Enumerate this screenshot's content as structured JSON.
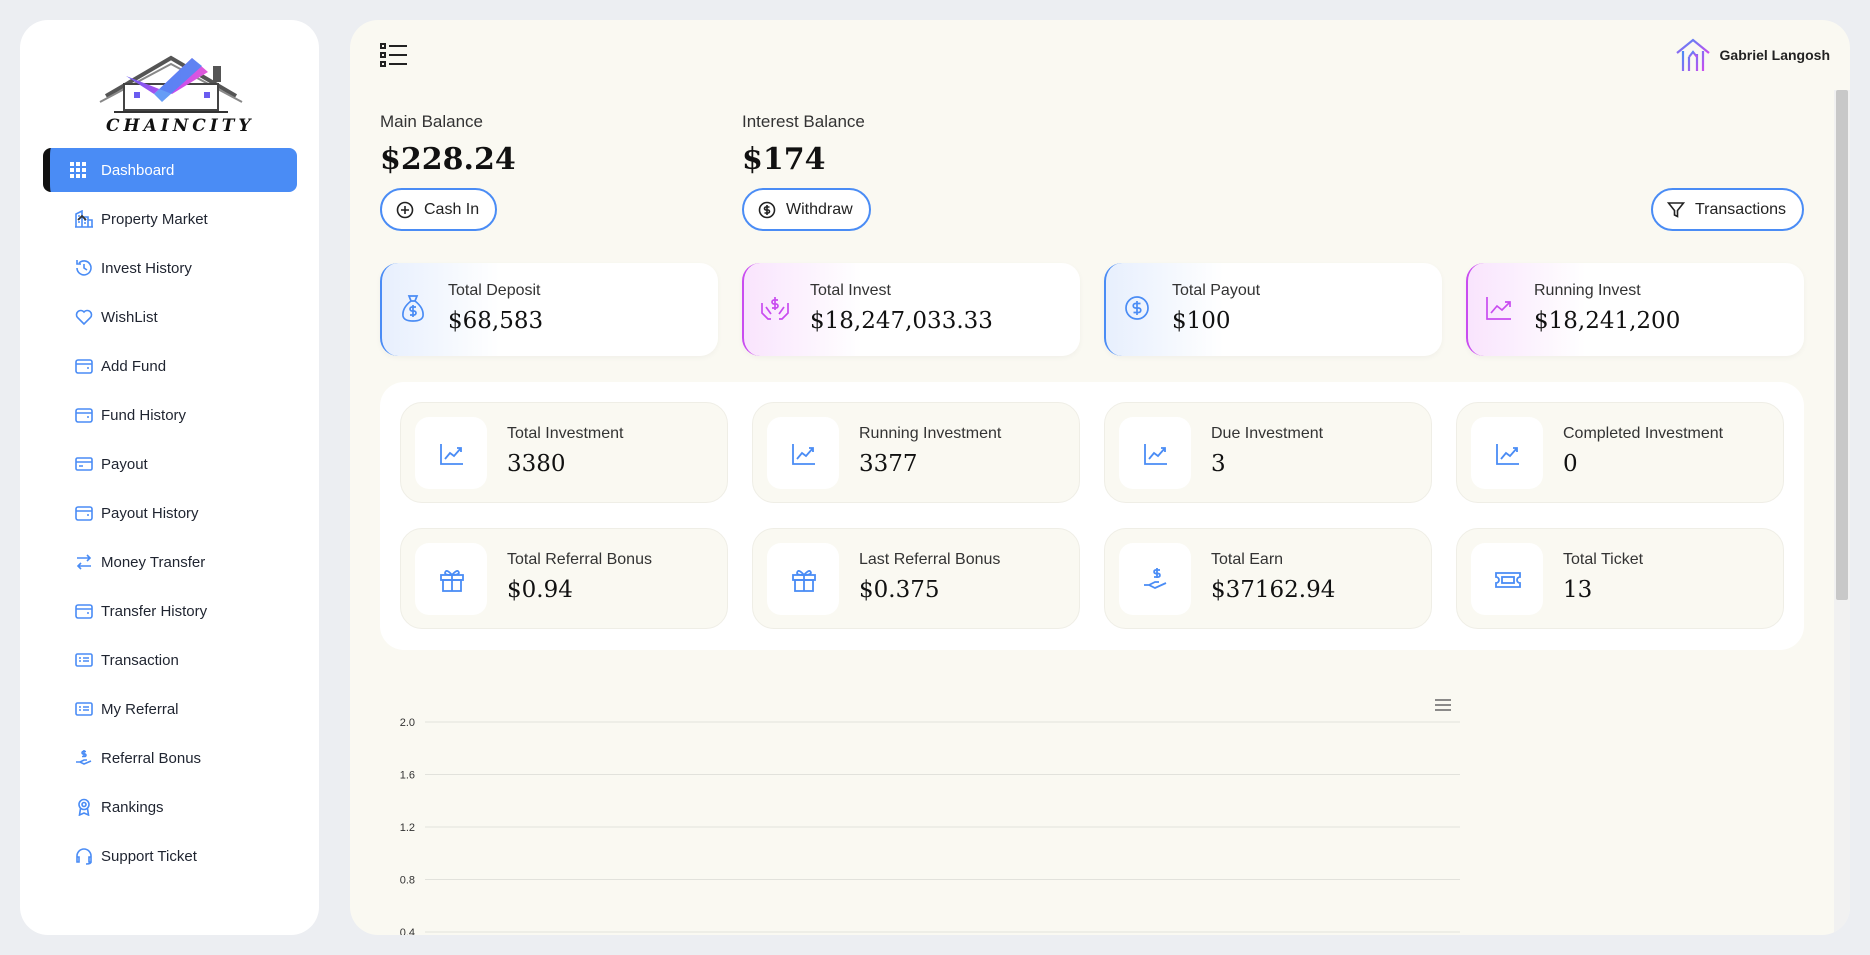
{
  "brand": {
    "name": "CHAINCITY"
  },
  "sidebar": {
    "items": [
      {
        "label": "Dashboard",
        "icon": "grid-icon",
        "active": true
      },
      {
        "label": "Property Market",
        "icon": "property-icon",
        "expandable": true
      },
      {
        "label": "Invest History",
        "icon": "history-icon"
      },
      {
        "label": "WishList",
        "icon": "heart-icon"
      },
      {
        "label": "Add Fund",
        "icon": "wallet-icon"
      },
      {
        "label": "Fund History",
        "icon": "wallet-icon"
      },
      {
        "label": "Payout",
        "icon": "card-icon"
      },
      {
        "label": "Payout History",
        "icon": "wallet-icon"
      },
      {
        "label": "Money Transfer",
        "icon": "transfer-icon"
      },
      {
        "label": "Transfer History",
        "icon": "wallet-icon"
      },
      {
        "label": "Transaction",
        "icon": "receipt-icon"
      },
      {
        "label": "My Referral",
        "icon": "receipt-icon"
      },
      {
        "label": "Referral Bonus",
        "icon": "hand-dollar-icon"
      },
      {
        "label": "Rankings",
        "icon": "award-icon"
      },
      {
        "label": "Support Ticket",
        "icon": "headset-icon"
      }
    ]
  },
  "header": {
    "user_name": "Gabriel Langosh"
  },
  "balances": {
    "main": {
      "title": "Main Balance",
      "value": "$228.24",
      "action": "Cash In"
    },
    "interest": {
      "title": "Interest Balance",
      "value": "$174",
      "action": "Withdraw"
    },
    "transactions_label": "Transactions"
  },
  "summary": [
    {
      "title": "Total Deposit",
      "value": "$68,583",
      "icon": "money-bag-icon",
      "accent": "#4a8cf5"
    },
    {
      "title": "Total Invest",
      "value": "$18,247,033.33",
      "icon": "hands-dollar-icon",
      "accent": "#c94cf0"
    },
    {
      "title": "Total Payout",
      "value": "$100",
      "icon": "dollar-circle-icon",
      "accent": "#4a8cf5"
    },
    {
      "title": "Running Invest",
      "value": "$18,241,200",
      "icon": "trend-icon",
      "accent": "#c94cf0"
    }
  ],
  "stats": [
    {
      "title": "Total Investment",
      "value": "3380",
      "icon": "chart-line-icon"
    },
    {
      "title": "Running Investment",
      "value": "3377",
      "icon": "chart-line-icon"
    },
    {
      "title": "Due Investment",
      "value": "3",
      "icon": "chart-line-icon"
    },
    {
      "title": "Completed Investment",
      "value": "0",
      "icon": "chart-line-icon"
    },
    {
      "title": "Total Referral Bonus",
      "value": "$0.94",
      "icon": "gift-icon"
    },
    {
      "title": "Last Referral Bonus",
      "value": "$0.375",
      "icon": "gift-icon"
    },
    {
      "title": "Total Earn",
      "value": "$37162.94",
      "icon": "hand-dollar-icon"
    },
    {
      "title": "Total Ticket",
      "value": "13",
      "icon": "ticket-icon"
    }
  ],
  "chart_data": {
    "type": "line",
    "title": "",
    "xlabel": "",
    "ylabel": "",
    "y_ticks": [
      2.0,
      1.6,
      1.2,
      0.8,
      0.4
    ],
    "y_tick_labels": [
      "2.0",
      "1.6",
      "1.2",
      "0.8",
      "0.4"
    ],
    "ylim": [
      0.4,
      2.0
    ],
    "grid": true,
    "series": []
  }
}
